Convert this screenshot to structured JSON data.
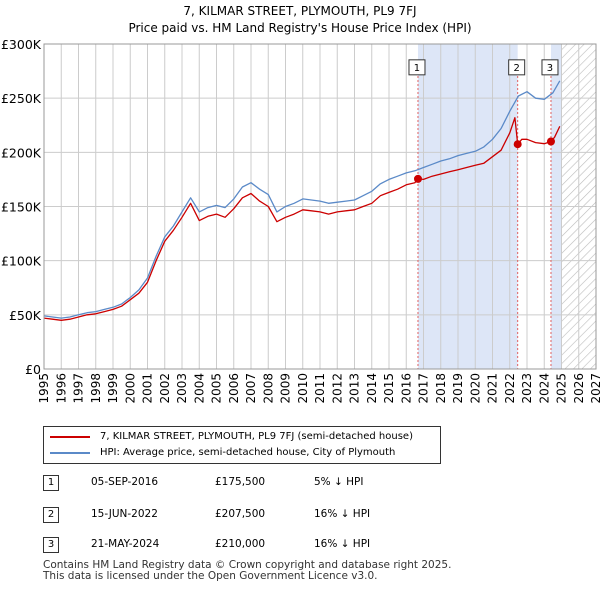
{
  "chart_data": {
    "type": "line",
    "title": "7, KILMAR STREET, PLYMOUTH, PL9 7FJ",
    "subtitle": "Price paid vs. HM Land Registry's House Price Index (HPI)",
    "xlim": [
      1995,
      2027
    ],
    "ylim": [
      0,
      300000
    ],
    "y_ticks": [
      {
        "value": 0,
        "label": "£0"
      },
      {
        "value": 50000,
        "label": "£50K"
      },
      {
        "value": 100000,
        "label": "£100K"
      },
      {
        "value": 150000,
        "label": "£150K"
      },
      {
        "value": 200000,
        "label": "£200K"
      },
      {
        "value": 250000,
        "label": "£250K"
      },
      {
        "value": 300000,
        "label": "£300K"
      }
    ],
    "x_ticks": [
      "1995",
      "1996",
      "1997",
      "1998",
      "1999",
      "2000",
      "2001",
      "2002",
      "2003",
      "2004",
      "2005",
      "2006",
      "2007",
      "2008",
      "2009",
      "2010",
      "2011",
      "2012",
      "2013",
      "2014",
      "2015",
      "2016",
      "2017",
      "2018",
      "2019",
      "2020",
      "2021",
      "2022",
      "2023",
      "2024",
      "2025",
      "2026",
      "2027"
    ],
    "forecast_start": 2025.0,
    "series": [
      {
        "name": "7, KILMAR STREET, PLYMOUTH, PL9 7FJ (semi-detached house)",
        "color": "#cc0000",
        "x": [
          1995.0,
          1995.5,
          1996.0,
          1996.5,
          1997.0,
          1997.5,
          1998.0,
          1998.5,
          1999.0,
          1999.5,
          2000.0,
          2000.5,
          2001.0,
          2001.5,
          2002.0,
          2002.5,
          2003.0,
          2003.5,
          2004.0,
          2004.5,
          2005.0,
          2005.5,
          2006.0,
          2006.5,
          2007.0,
          2007.5,
          2008.0,
          2008.5,
          2009.0,
          2009.5,
          2010.0,
          2010.5,
          2011.0,
          2011.5,
          2012.0,
          2012.5,
          2013.0,
          2013.5,
          2014.0,
          2014.5,
          2015.0,
          2015.5,
          2016.0,
          2016.5,
          2016.68,
          2017.0,
          2017.5,
          2018.0,
          2018.5,
          2019.0,
          2019.5,
          2020.0,
          2020.5,
          2021.0,
          2021.5,
          2022.0,
          2022.3,
          2022.46,
          2022.7,
          2023.0,
          2023.5,
          2024.0,
          2024.39,
          2024.6,
          2024.9
        ],
        "values": [
          47000,
          46000,
          45000,
          46000,
          48000,
          50000,
          51000,
          53000,
          55000,
          58000,
          64000,
          70000,
          80000,
          100000,
          118000,
          128000,
          140000,
          153000,
          137000,
          141000,
          143000,
          140000,
          148000,
          158000,
          162000,
          155000,
          150000,
          136000,
          140000,
          143000,
          147000,
          146000,
          145000,
          143000,
          145000,
          146000,
          147000,
          150000,
          153000,
          160000,
          163000,
          166000,
          170000,
          172000,
          175500,
          175000,
          178000,
          180000,
          182000,
          184000,
          186000,
          188000,
          190000,
          196000,
          202000,
          218000,
          232000,
          207500,
          212000,
          212000,
          209000,
          208000,
          210000,
          214000,
          224000
        ]
      },
      {
        "name": "HPI: Average price, semi-detached house, City of Plymouth",
        "color": "#5b8ac8",
        "x": [
          1995.0,
          1995.5,
          1996.0,
          1996.5,
          1997.0,
          1997.5,
          1998.0,
          1998.5,
          1999.0,
          1999.5,
          2000.0,
          2000.5,
          2001.0,
          2001.5,
          2002.0,
          2002.5,
          2003.0,
          2003.5,
          2004.0,
          2004.5,
          2005.0,
          2005.5,
          2006.0,
          2006.5,
          2007.0,
          2007.5,
          2008.0,
          2008.5,
          2009.0,
          2009.5,
          2010.0,
          2010.5,
          2011.0,
          2011.5,
          2012.0,
          2012.5,
          2013.0,
          2013.5,
          2014.0,
          2014.5,
          2015.0,
          2015.5,
          2016.0,
          2016.5,
          2017.0,
          2017.5,
          2018.0,
          2018.5,
          2019.0,
          2019.5,
          2020.0,
          2020.5,
          2021.0,
          2021.5,
          2022.0,
          2022.5,
          2023.0,
          2023.5,
          2024.0,
          2024.5,
          2024.9
        ],
        "values": [
          49000,
          48000,
          47000,
          48000,
          50000,
          52000,
          53000,
          55000,
          57000,
          60000,
          66000,
          73000,
          84000,
          104000,
          122000,
          132000,
          145000,
          158000,
          145000,
          149000,
          151000,
          149000,
          157000,
          168000,
          172000,
          166000,
          161000,
          145000,
          150000,
          153000,
          157000,
          156000,
          155000,
          153000,
          154000,
          155000,
          156000,
          160000,
          164000,
          171000,
          175000,
          178000,
          181000,
          183000,
          186000,
          189000,
          192000,
          194000,
          197000,
          199000,
          201000,
          205000,
          212000,
          222000,
          238000,
          252000,
          256000,
          250000,
          249000,
          255000,
          266000
        ]
      }
    ],
    "sales": [
      {
        "id": "1",
        "x": 2016.68,
        "value": 175500
      },
      {
        "id": "2",
        "x": 2022.46,
        "value": 207500
      },
      {
        "id": "3",
        "x": 2024.39,
        "value": 210000
      }
    ],
    "shade_ranges": [
      [
        2016.68,
        2022.46
      ],
      [
        2024.39,
        2025.0
      ]
    ],
    "marker_label_y": 278000
  },
  "legend": {
    "property_label": "7, KILMAR STREET, PLYMOUTH, PL9 7FJ (semi-detached house)",
    "hpi_label": "HPI: Average price, semi-detached house, City of Plymouth"
  },
  "sales_table": [
    {
      "id": "1",
      "date": "05-SEP-2016",
      "price": "£175,500",
      "hpi": "5% ↓ HPI"
    },
    {
      "id": "2",
      "date": "15-JUN-2022",
      "price": "£207,500",
      "hpi": "16% ↓ HPI"
    },
    {
      "id": "3",
      "date": "21-MAY-2024",
      "price": "£210,000",
      "hpi": "16% ↓ HPI"
    }
  ],
  "footer": {
    "line1": "Contains HM Land Registry data © Crown copyright and database right 2025.",
    "line2": "This data is licensed under the Open Government Licence v3.0."
  },
  "colors": {
    "property": "#cc0000",
    "hpi": "#5b8ac8",
    "shade": "#dde6f7",
    "vline": "#e06060",
    "grid": "#cccccc"
  }
}
